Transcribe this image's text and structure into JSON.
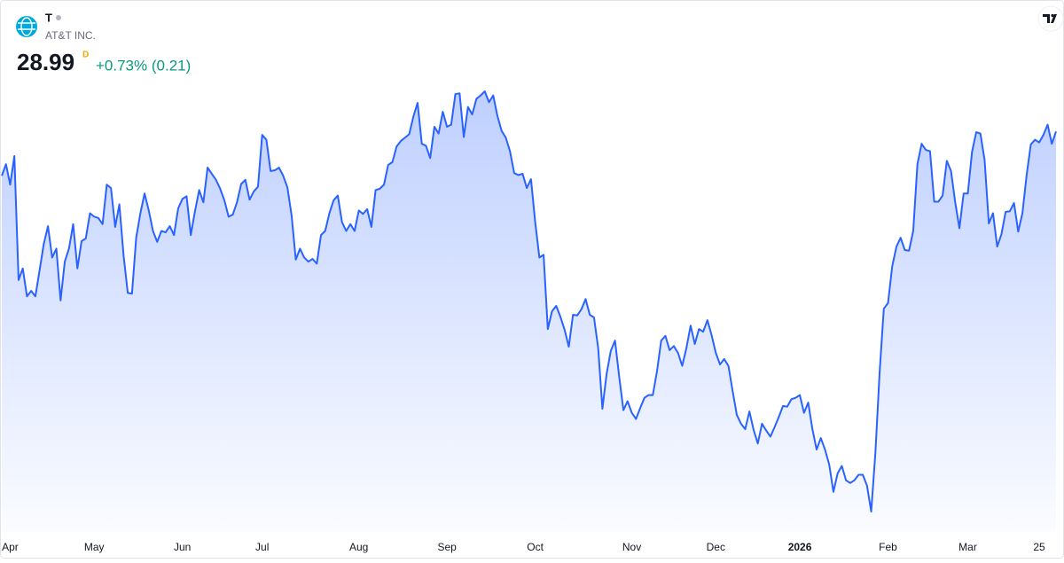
{
  "header": {
    "symbol": "T",
    "company": "AT&T INC.",
    "price": "28.99",
    "interval": "D",
    "change": "+0.73% (0.21)"
  },
  "chart_data": {
    "type": "area",
    "color": "#2962ff",
    "categories": [
      null,
      null,
      "Apr",
      null,
      null,
      null,
      null,
      null,
      null,
      null,
      null,
      null,
      null,
      null,
      null,
      null,
      null,
      null,
      null,
      null,
      null,
      null,
      "May",
      null,
      null,
      null,
      null,
      null,
      null,
      null,
      null,
      null,
      null,
      null,
      null,
      null,
      null,
      null,
      null,
      null,
      null,
      null,
      null,
      "Jun",
      null,
      null,
      null,
      null,
      null,
      null,
      null,
      null,
      null,
      null,
      null,
      null,
      null,
      null,
      null,
      null,
      null,
      null,
      "Jul",
      null,
      null,
      null,
      null,
      null,
      null,
      null,
      null,
      null,
      null,
      null,
      null,
      null,
      null,
      null,
      null,
      null,
      null,
      null,
      null,
      null,
      null,
      "Aug",
      null,
      null,
      null,
      null,
      null,
      null,
      null,
      null,
      null,
      null,
      null,
      null,
      null,
      null,
      null,
      null,
      null,
      null,
      null,
      null,
      "Sep",
      null,
      null,
      null,
      null,
      null,
      null,
      null,
      null,
      null,
      null,
      null,
      null,
      null,
      null,
      null,
      null,
      null,
      null,
      null,
      null,
      "Oct",
      null,
      null,
      null,
      null,
      null,
      null,
      null,
      null,
      null,
      null,
      null,
      null,
      null,
      null,
      null,
      null,
      null,
      null,
      null,
      null,
      null,
      null,
      "Nov",
      null,
      null,
      null,
      null,
      null,
      null,
      null,
      null,
      null,
      null,
      null,
      null,
      null,
      null,
      null,
      null,
      null,
      null,
      null,
      "Dec",
      null,
      null,
      null,
      null,
      null,
      null,
      null,
      null,
      null,
      null,
      null,
      null,
      null,
      null,
      null,
      null,
      null,
      null,
      null,
      "2026",
      null,
      null,
      null,
      null,
      null,
      null,
      null,
      null,
      null,
      null,
      null,
      null,
      null,
      null,
      null,
      null,
      null,
      null,
      null,
      null,
      "Feb",
      null,
      null,
      null,
      null,
      null,
      null,
      null,
      null,
      null,
      null,
      null,
      null,
      null,
      null,
      null,
      null,
      null,
      null,
      "Mar",
      null,
      null,
      null,
      null,
      null,
      null,
      null,
      null,
      null,
      null,
      null,
      null,
      null,
      null,
      null,
      null,
      "25",
      null,
      null,
      null,
      null
    ],
    "values": [
      28.34,
      28.51,
      28.21,
      28.63,
      26.81,
      26.98,
      26.57,
      26.65,
      26.57,
      26.95,
      27.34,
      27.6,
      27.14,
      27.27,
      26.51,
      27.08,
      27.27,
      27.63,
      26.98,
      27.38,
      27.42,
      27.79,
      27.74,
      27.72,
      27.63,
      28.21,
      28.16,
      27.59,
      27.92,
      27.17,
      26.62,
      26.61,
      27.43,
      27.79,
      28.08,
      27.83,
      27.53,
      27.37,
      27.53,
      27.51,
      27.6,
      27.47,
      27.86,
      28.0,
      28.04,
      27.47,
      27.82,
      28.13,
      27.95,
      28.46,
      28.37,
      28.28,
      28.15,
      27.98,
      27.74,
      27.77,
      27.95,
      28.22,
      28.28,
      27.99,
      28.11,
      28.18,
      28.94,
      28.87,
      28.41,
      28.42,
      28.46,
      28.34,
      28.17,
      27.76,
      27.11,
      27.27,
      27.14,
      27.08,
      27.12,
      27.05,
      27.47,
      27.53,
      27.79,
      27.98,
      28.05,
      27.66,
      27.53,
      27.63,
      27.53,
      27.83,
      27.78,
      27.85,
      27.59,
      28.13,
      28.15,
      28.21,
      28.5,
      28.54,
      28.77,
      28.85,
      28.9,
      28.95,
      29.21,
      29.41,
      28.81,
      28.78,
      28.6,
      29.06,
      28.96,
      29.28,
      29.06,
      29.09,
      29.54,
      29.55,
      28.91,
      29.35,
      29.24,
      29.47,
      29.52,
      29.58,
      29.42,
      29.52,
      29.22,
      29.0,
      28.9,
      28.7,
      28.38,
      28.35,
      28.37,
      28.16,
      28.29,
      27.66,
      27.14,
      27.18,
      26.09,
      26.35,
      26.43,
      26.27,
      26.08,
      25.83,
      26.3,
      26.29,
      26.38,
      26.53,
      26.3,
      26.26,
      25.81,
      24.92,
      25.43,
      25.77,
      25.92,
      25.39,
      24.9,
      25.03,
      24.86,
      24.77,
      24.93,
      25.08,
      25.12,
      25.12,
      25.47,
      25.92,
      25.99,
      25.78,
      25.84,
      25.74,
      25.55,
      25.81,
      26.14,
      25.87,
      26.09,
      26.05,
      26.22,
      26.0,
      25.74,
      25.57,
      25.65,
      25.55,
      25.18,
      24.83,
      24.7,
      24.62,
      24.88,
      24.61,
      24.41,
      24.7,
      24.6,
      24.51,
      24.65,
      24.8,
      24.96,
      24.95,
      25.06,
      25.08,
      25.12,
      24.86,
      25.01,
      24.62,
      24.32,
      24.49,
      24.32,
      24.1,
      23.7,
      23.97,
      24.08,
      23.87,
      23.83,
      23.87,
      23.95,
      23.95,
      23.79,
      23.41,
      24.28,
      25.45,
      26.39,
      26.47,
      27.01,
      27.3,
      27.43,
      27.25,
      27.24,
      27.53,
      28.51,
      28.81,
      28.72,
      28.7,
      27.96,
      27.96,
      28.05,
      28.56,
      28.41,
      27.95,
      27.57,
      28.08,
      28.08,
      28.69,
      28.98,
      28.96,
      28.57,
      27.64,
      27.79,
      27.3,
      27.48,
      27.81,
      27.82,
      27.94,
      27.52,
      27.79,
      28.35,
      28.8,
      28.87,
      28.83,
      28.94,
      29.09,
      28.81,
      28.99
    ]
  }
}
